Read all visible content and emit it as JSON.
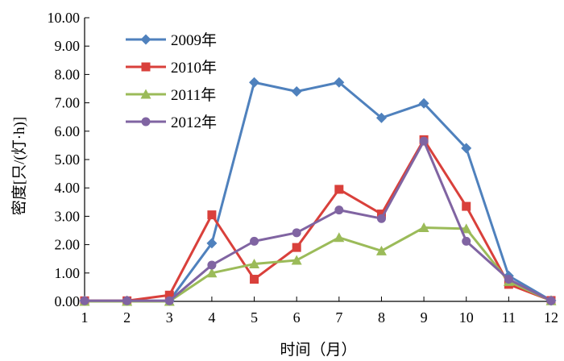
{
  "chart_data": {
    "type": "line",
    "title": "",
    "xlabel": "时间（月）",
    "ylabel": "密度[只/(灯·h)]",
    "x": [
      1,
      2,
      3,
      4,
      5,
      6,
      7,
      8,
      9,
      10,
      11,
      12
    ],
    "xlim": [
      1,
      12
    ],
    "ylim": [
      0,
      10
    ],
    "y_ticks": [
      "0.00",
      "1.00",
      "2.00",
      "3.00",
      "4.00",
      "5.00",
      "6.00",
      "7.00",
      "8.00",
      "9.00",
      "10.00"
    ],
    "x_ticks": [
      "1",
      "2",
      "3",
      "4",
      "5",
      "6",
      "7",
      "8",
      "9",
      "10",
      "11",
      "12"
    ],
    "grid": false,
    "legend_position": "top-left",
    "series": [
      {
        "name": "2009年",
        "color": "#4F81BD",
        "marker": "diamond",
        "values": [
          0.02,
          0.02,
          0.02,
          2.05,
          7.72,
          7.4,
          7.72,
          6.47,
          6.98,
          5.4,
          0.9,
          0.03
        ]
      },
      {
        "name": "2010年",
        "color": "#D9403B",
        "marker": "square",
        "values": [
          0.02,
          0.02,
          0.22,
          3.05,
          0.78,
          1.9,
          3.95,
          3.08,
          5.7,
          3.35,
          0.6,
          0.03
        ]
      },
      {
        "name": "2011年",
        "color": "#9BBB59",
        "marker": "triangle",
        "values": [
          0.0,
          0.0,
          0.0,
          1.0,
          1.32,
          1.45,
          2.25,
          1.78,
          2.6,
          2.56,
          0.7,
          0.02
        ]
      },
      {
        "name": "2012年",
        "color": "#8064A2",
        "marker": "circle",
        "values": [
          0.02,
          0.02,
          0.02,
          1.28,
          2.12,
          2.42,
          3.22,
          2.92,
          5.65,
          2.12,
          0.78,
          0.02
        ]
      }
    ]
  }
}
